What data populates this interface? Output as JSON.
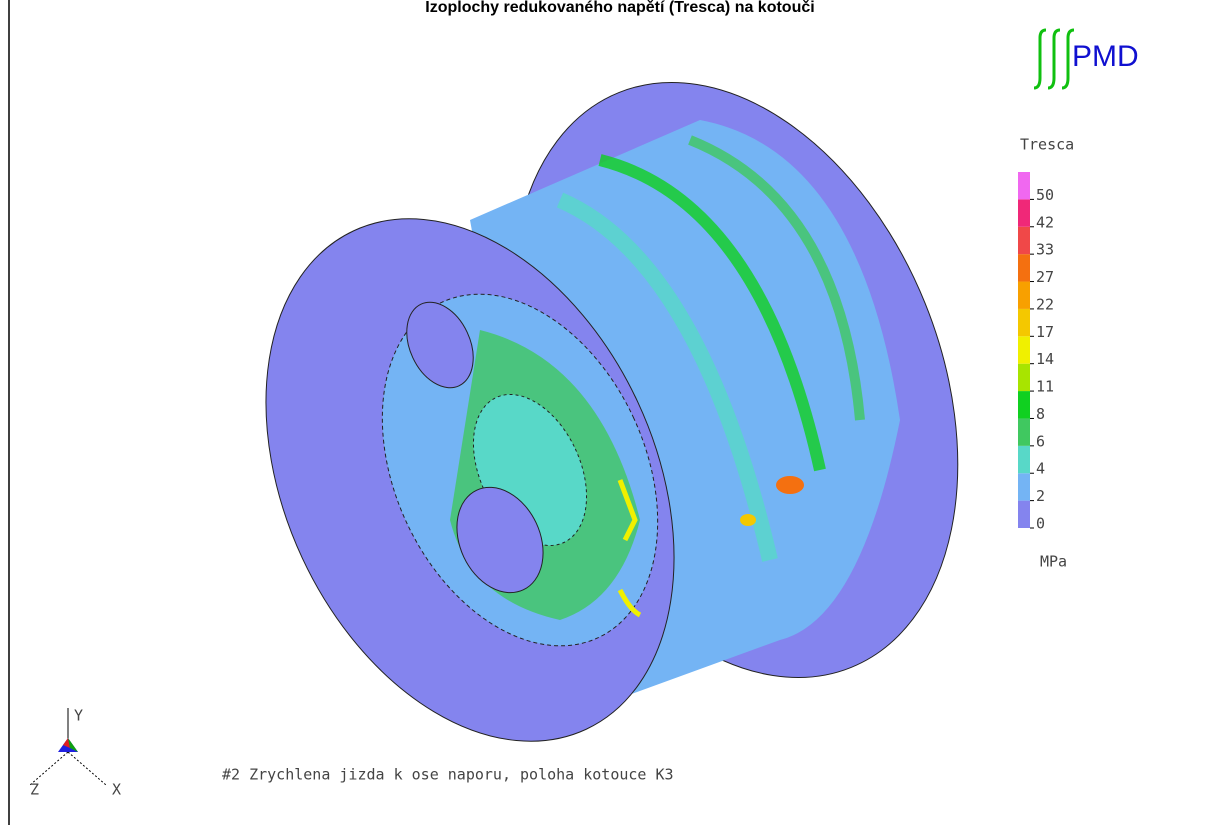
{
  "title": "Izoplochy redukovaného napětí (Tresca) na kotouči",
  "logo": "PMD",
  "legend": {
    "title": "Tresca",
    "unit": "MPa",
    "levels": [
      {
        "value": 0,
        "color": "#8484ee"
      },
      {
        "value": 2,
        "color": "#74b4f4"
      },
      {
        "value": 4,
        "color": "#58d8c8"
      },
      {
        "value": 6,
        "color": "#40c860"
      },
      {
        "value": 8,
        "color": "#10d020"
      },
      {
        "value": 11,
        "color": "#a8e400"
      },
      {
        "value": 14,
        "color": "#f0f000"
      },
      {
        "value": 17,
        "color": "#f4c800"
      },
      {
        "value": 22,
        "color": "#f8a000"
      },
      {
        "value": 27,
        "color": "#f47010"
      },
      {
        "value": 33,
        "color": "#f04848"
      },
      {
        "value": 42,
        "color": "#f02878"
      },
      {
        "value": 50,
        "color": "#f068f0"
      }
    ]
  },
  "caption": "#2 Zrychlena jizda k ose naporu, poloha kotouce K3",
  "axes": {
    "y": "Y",
    "z": "Z",
    "x": "X"
  }
}
